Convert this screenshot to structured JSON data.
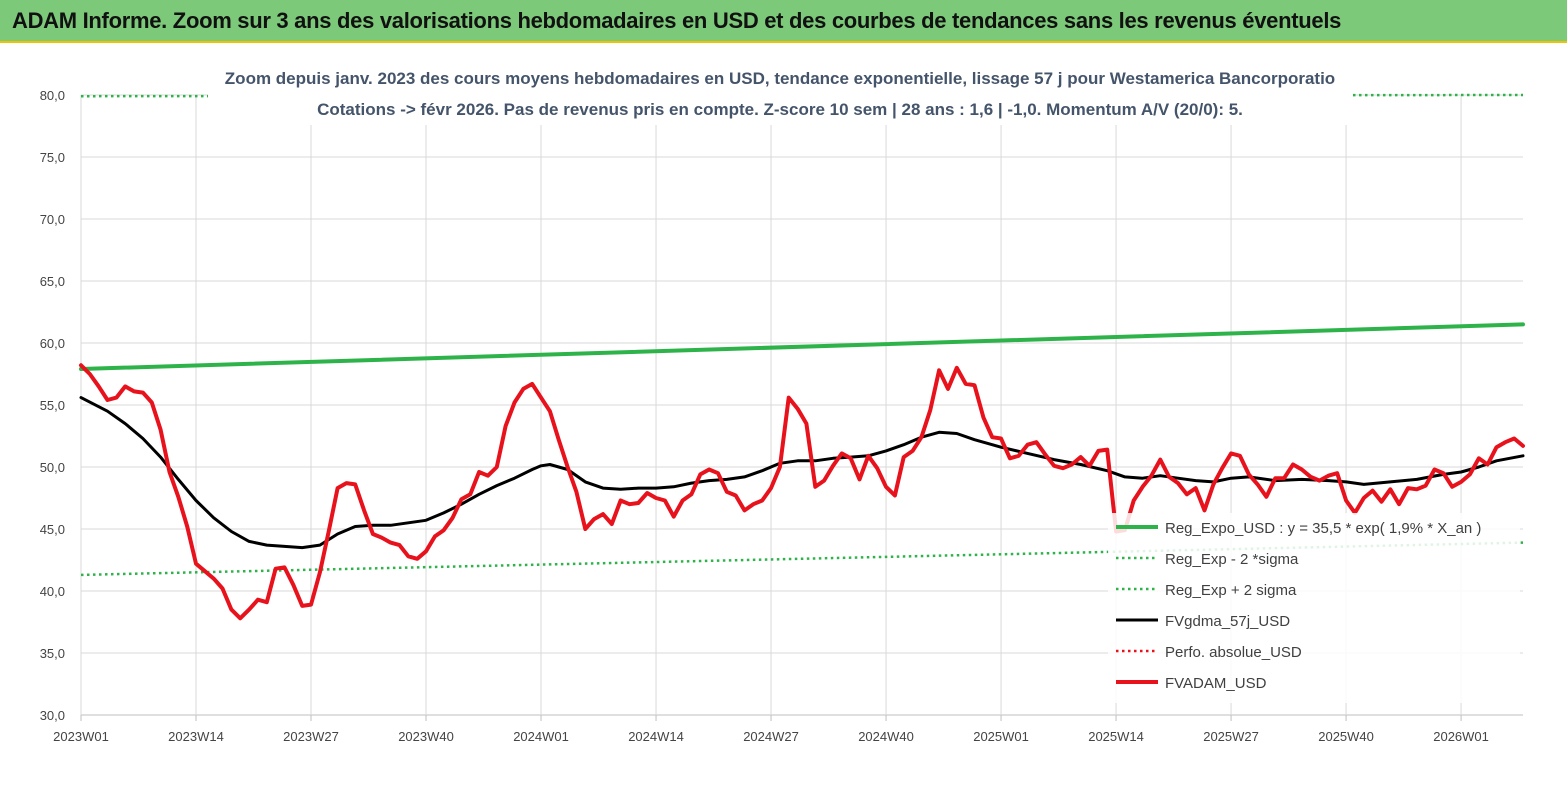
{
  "header": {
    "title": "ADAM Informe. Zoom sur 3 ans des valorisations hebdomadaires en USD et des courbes de tendances sans les revenus éventuels"
  },
  "chart_data": {
    "type": "line",
    "title": "Zoom depuis janv. 2023 des cours moyens hebdomadaires en USD, tendance exponentielle, lissage 57 j pour Westamerica Bancorporatio",
    "subtitle": "Cotations -> févr 2026. Pas de revenus pris en compte. Z-score 10 sem | 28 ans : 1,6 | -1,0. Momentum A/V (20/0): 5.",
    "ylim": [
      30,
      80
    ],
    "yticks": [
      "30,0",
      "35,0",
      "40,0",
      "45,0",
      "50,0",
      "55,0",
      "60,0",
      "65,0",
      "70,0",
      "75,0",
      "80,0"
    ],
    "xticks": [
      "2023W01",
      "2023W14",
      "2023W27",
      "2023W40",
      "2024W01",
      "2024W14",
      "2024W27",
      "2024W40",
      "2025W01",
      "2025W14",
      "2025W27",
      "2025W40",
      "2026W01"
    ],
    "grid": true,
    "legend_position": "right",
    "series": [
      {
        "name": "Reg_Expo_USD : y = 35,5 * exp( 1,9% *  X_an )",
        "color": "#2db34a",
        "style": "thick-solid",
        "points": [
          [
            "2023W01",
            57.9
          ],
          [
            "2026W08",
            61.5
          ]
        ]
      },
      {
        "name": "Reg_Exp - 2 *sigma",
        "color": "#2db34a",
        "style": "dotted",
        "points": [
          [
            "2023W01",
            41.3
          ],
          [
            "2026W08",
            43.9
          ]
        ]
      },
      {
        "name": "Reg_Exp + 2 sigma",
        "color": "#2db34a",
        "style": "dotted",
        "points": [
          [
            "2023W01",
            79.9
          ],
          [
            "2026W08",
            80.0
          ]
        ]
      },
      {
        "name": "FVgdma_57j_USD",
        "color": "#000000",
        "style": "solid",
        "points": [
          [
            "2023W01",
            55.6
          ],
          [
            "2023W04",
            54.5
          ],
          [
            "2023W06",
            53.5
          ],
          [
            "2023W08",
            52.3
          ],
          [
            "2023W10",
            50.8
          ],
          [
            "2023W12",
            49.0
          ],
          [
            "2023W14",
            47.3
          ],
          [
            "2023W16",
            45.9
          ],
          [
            "2023W18",
            44.8
          ],
          [
            "2023W20",
            44.0
          ],
          [
            "2023W22",
            43.7
          ],
          [
            "2023W24",
            43.6
          ],
          [
            "2023W26",
            43.5
          ],
          [
            "2023W28",
            43.7
          ],
          [
            "2023W30",
            44.6
          ],
          [
            "2023W32",
            45.2
          ],
          [
            "2023W34",
            45.3
          ],
          [
            "2023W36",
            45.3
          ],
          [
            "2023W38",
            45.5
          ],
          [
            "2023W40",
            45.7
          ],
          [
            "2023W42",
            46.3
          ],
          [
            "2023W44",
            47.0
          ],
          [
            "2023W46",
            47.8
          ],
          [
            "2023W48",
            48.5
          ],
          [
            "2023W50",
            49.1
          ],
          [
            "2023W52",
            49.8
          ],
          [
            "2024W01",
            50.1
          ],
          [
            "2024W02",
            50.2
          ],
          [
            "2024W04",
            49.8
          ],
          [
            "2024W06",
            48.8
          ],
          [
            "2024W08",
            48.3
          ],
          [
            "2024W10",
            48.2
          ],
          [
            "2024W12",
            48.3
          ],
          [
            "2024W14",
            48.3
          ],
          [
            "2024W16",
            48.4
          ],
          [
            "2024W18",
            48.7
          ],
          [
            "2024W20",
            48.9
          ],
          [
            "2024W22",
            49.0
          ],
          [
            "2024W24",
            49.2
          ],
          [
            "2024W26",
            49.7
          ],
          [
            "2024W28",
            50.3
          ],
          [
            "2024W30",
            50.5
          ],
          [
            "2024W32",
            50.5
          ],
          [
            "2024W34",
            50.7
          ],
          [
            "2024W36",
            50.8
          ],
          [
            "2024W38",
            50.9
          ],
          [
            "2024W40",
            51.3
          ],
          [
            "2024W42",
            51.8
          ],
          [
            "2024W44",
            52.4
          ],
          [
            "2024W46",
            52.8
          ],
          [
            "2024W48",
            52.7
          ],
          [
            "2024W50",
            52.2
          ],
          [
            "2024W52",
            51.8
          ],
          [
            "2025W01",
            51.6
          ],
          [
            "2025W04",
            51.1
          ],
          [
            "2025W07",
            50.6
          ],
          [
            "2025W10",
            50.2
          ],
          [
            "2025W13",
            49.7
          ],
          [
            "2025W15",
            49.2
          ],
          [
            "2025W17",
            49.1
          ],
          [
            "2025W19",
            49.3
          ],
          [
            "2025W21",
            49.1
          ],
          [
            "2025W23",
            48.9
          ],
          [
            "2025W25",
            48.8
          ],
          [
            "2025W27",
            49.1
          ],
          [
            "2025W29",
            49.2
          ],
          [
            "2025W32",
            48.9
          ],
          [
            "2025W35",
            49.0
          ],
          [
            "2025W38",
            48.9
          ],
          [
            "2025W40",
            48.8
          ],
          [
            "2025W42",
            48.6
          ],
          [
            "2025W45",
            48.8
          ],
          [
            "2025W48",
            49.0
          ],
          [
            "2025W51",
            49.4
          ],
          [
            "2026W01",
            49.6
          ],
          [
            "2026W03",
            50.0
          ],
          [
            "2026W05",
            50.5
          ],
          [
            "2026W08",
            50.9
          ]
        ]
      },
      {
        "name": "Perfo. absolue_USD",
        "color": "#e8121c",
        "style": "dotted",
        "points": []
      },
      {
        "name": "FVADAM_USD",
        "color": "#e8121c",
        "style": "thick-solid",
        "points": [
          [
            "2023W01",
            58.2
          ],
          [
            "2023W02",
            57.5
          ],
          [
            "2023W03",
            56.5
          ],
          [
            "2023W04",
            55.4
          ],
          [
            "2023W05",
            55.6
          ],
          [
            "2023W06",
            56.5
          ],
          [
            "2023W07",
            56.1
          ],
          [
            "2023W08",
            56.0
          ],
          [
            "2023W09",
            55.2
          ],
          [
            "2023W10",
            53.0
          ],
          [
            "2023W11",
            49.6
          ],
          [
            "2023W12",
            47.6
          ],
          [
            "2023W13",
            45.2
          ],
          [
            "2023W14",
            42.2
          ],
          [
            "2023W15",
            41.6
          ],
          [
            "2023W16",
            41.0
          ],
          [
            "2023W17",
            40.2
          ],
          [
            "2023W18",
            38.5
          ],
          [
            "2023W19",
            37.8
          ],
          [
            "2023W20",
            38.5
          ],
          [
            "2023W21",
            39.3
          ],
          [
            "2023W22",
            39.1
          ],
          [
            "2023W23",
            41.8
          ],
          [
            "2023W24",
            41.9
          ],
          [
            "2023W25",
            40.5
          ],
          [
            "2023W26",
            38.8
          ],
          [
            "2023W27",
            38.9
          ],
          [
            "2023W28",
            41.5
          ],
          [
            "2023W29",
            44.8
          ],
          [
            "2023W30",
            48.3
          ],
          [
            "2023W31",
            48.7
          ],
          [
            "2023W32",
            48.6
          ],
          [
            "2023W33",
            46.5
          ],
          [
            "2023W34",
            44.6
          ],
          [
            "2023W35",
            44.3
          ],
          [
            "2023W36",
            43.9
          ],
          [
            "2023W37",
            43.7
          ],
          [
            "2023W38",
            42.8
          ],
          [
            "2023W39",
            42.6
          ],
          [
            "2023W40",
            43.2
          ],
          [
            "2023W41",
            44.4
          ],
          [
            "2023W42",
            44.9
          ],
          [
            "2023W43",
            45.9
          ],
          [
            "2023W44",
            47.4
          ],
          [
            "2023W45",
            47.8
          ],
          [
            "2023W46",
            49.6
          ],
          [
            "2023W47",
            49.3
          ],
          [
            "2023W48",
            50.0
          ],
          [
            "2023W49",
            53.3
          ],
          [
            "2023W50",
            55.2
          ],
          [
            "2023W51",
            56.3
          ],
          [
            "2023W52",
            56.7
          ],
          [
            "2024W01",
            55.6
          ],
          [
            "2024W02",
            54.5
          ],
          [
            "2024W03",
            52.2
          ],
          [
            "2024W04",
            50.0
          ],
          [
            "2024W05",
            48.0
          ],
          [
            "2024W06",
            45.0
          ],
          [
            "2024W07",
            45.8
          ],
          [
            "2024W08",
            46.2
          ],
          [
            "2024W09",
            45.4
          ],
          [
            "2024W10",
            47.3
          ],
          [
            "2024W11",
            47.0
          ],
          [
            "2024W12",
            47.1
          ],
          [
            "2024W13",
            47.9
          ],
          [
            "2024W14",
            47.5
          ],
          [
            "2024W15",
            47.3
          ],
          [
            "2024W16",
            46.0
          ],
          [
            "2024W17",
            47.3
          ],
          [
            "2024W18",
            47.8
          ],
          [
            "2024W19",
            49.4
          ],
          [
            "2024W20",
            49.8
          ],
          [
            "2024W21",
            49.5
          ],
          [
            "2024W22",
            48.0
          ],
          [
            "2024W23",
            47.7
          ],
          [
            "2024W24",
            46.5
          ],
          [
            "2024W25",
            47.0
          ],
          [
            "2024W26",
            47.3
          ],
          [
            "2024W27",
            48.3
          ],
          [
            "2024W28",
            50.0
          ],
          [
            "2024W29",
            55.6
          ],
          [
            "2024W30",
            54.7
          ],
          [
            "2024W31",
            53.5
          ],
          [
            "2024W32",
            48.4
          ],
          [
            "2024W33",
            48.9
          ],
          [
            "2024W34",
            50.1
          ],
          [
            "2024W35",
            51.1
          ],
          [
            "2024W36",
            50.7
          ],
          [
            "2024W37",
            49.0
          ],
          [
            "2024W38",
            50.9
          ],
          [
            "2024W39",
            49.9
          ],
          [
            "2024W40",
            48.4
          ],
          [
            "2024W41",
            47.7
          ],
          [
            "2024W42",
            50.8
          ],
          [
            "2024W43",
            51.3
          ],
          [
            "2024W44",
            52.4
          ],
          [
            "2024W45",
            54.6
          ],
          [
            "2024W46",
            57.8
          ],
          [
            "2024W47",
            56.3
          ],
          [
            "2024W48",
            58.0
          ],
          [
            "2024W49",
            56.7
          ],
          [
            "2024W50",
            56.6
          ],
          [
            "2024W51",
            54.0
          ],
          [
            "2024W52",
            52.4
          ],
          [
            "2025W01",
            52.3
          ],
          [
            "2025W02",
            50.7
          ],
          [
            "2025W03",
            50.9
          ],
          [
            "2025W04",
            51.8
          ],
          [
            "2025W05",
            52.0
          ],
          [
            "2025W06",
            51.0
          ],
          [
            "2025W07",
            50.1
          ],
          [
            "2025W08",
            49.9
          ],
          [
            "2025W09",
            50.2
          ],
          [
            "2025W10",
            50.8
          ],
          [
            "2025W11",
            50.1
          ],
          [
            "2025W12",
            51.3
          ],
          [
            "2025W13",
            51.4
          ],
          [
            "2025W14",
            44.8
          ],
          [
            "2025W15",
            44.9
          ],
          [
            "2025W16",
            47.3
          ],
          [
            "2025W17",
            48.4
          ],
          [
            "2025W18",
            49.3
          ],
          [
            "2025W19",
            50.6
          ],
          [
            "2025W20",
            49.2
          ],
          [
            "2025W21",
            48.7
          ],
          [
            "2025W22",
            47.8
          ],
          [
            "2025W23",
            48.3
          ],
          [
            "2025W24",
            46.5
          ],
          [
            "2025W25",
            48.6
          ],
          [
            "2025W26",
            49.9
          ],
          [
            "2025W27",
            51.1
          ],
          [
            "2025W28",
            50.9
          ],
          [
            "2025W29",
            49.4
          ],
          [
            "2025W30",
            48.6
          ],
          [
            "2025W31",
            47.6
          ],
          [
            "2025W32",
            49.1
          ],
          [
            "2025W33",
            49.1
          ],
          [
            "2025W34",
            50.2
          ],
          [
            "2025W35",
            49.8
          ],
          [
            "2025W36",
            49.2
          ],
          [
            "2025W37",
            48.9
          ],
          [
            "2025W38",
            49.3
          ],
          [
            "2025W39",
            49.5
          ],
          [
            "2025W40",
            47.3
          ],
          [
            "2025W41",
            46.3
          ],
          [
            "2025W42",
            47.5
          ],
          [
            "2025W43",
            48.1
          ],
          [
            "2025W44",
            47.2
          ],
          [
            "2025W45",
            48.2
          ],
          [
            "2025W46",
            47.0
          ],
          [
            "2025W47",
            48.3
          ],
          [
            "2025W48",
            48.2
          ],
          [
            "2025W49",
            48.5
          ],
          [
            "2025W50",
            49.8
          ],
          [
            "2025W51",
            49.5
          ],
          [
            "2025W52",
            48.4
          ],
          [
            "2026W01",
            48.8
          ],
          [
            "2026W02",
            49.4
          ],
          [
            "2026W03",
            50.7
          ],
          [
            "2026W04",
            50.2
          ],
          [
            "2026W05",
            51.6
          ],
          [
            "2026W06",
            52.0
          ],
          [
            "2026W07",
            52.3
          ],
          [
            "2026W08",
            51.7
          ]
        ]
      }
    ]
  }
}
